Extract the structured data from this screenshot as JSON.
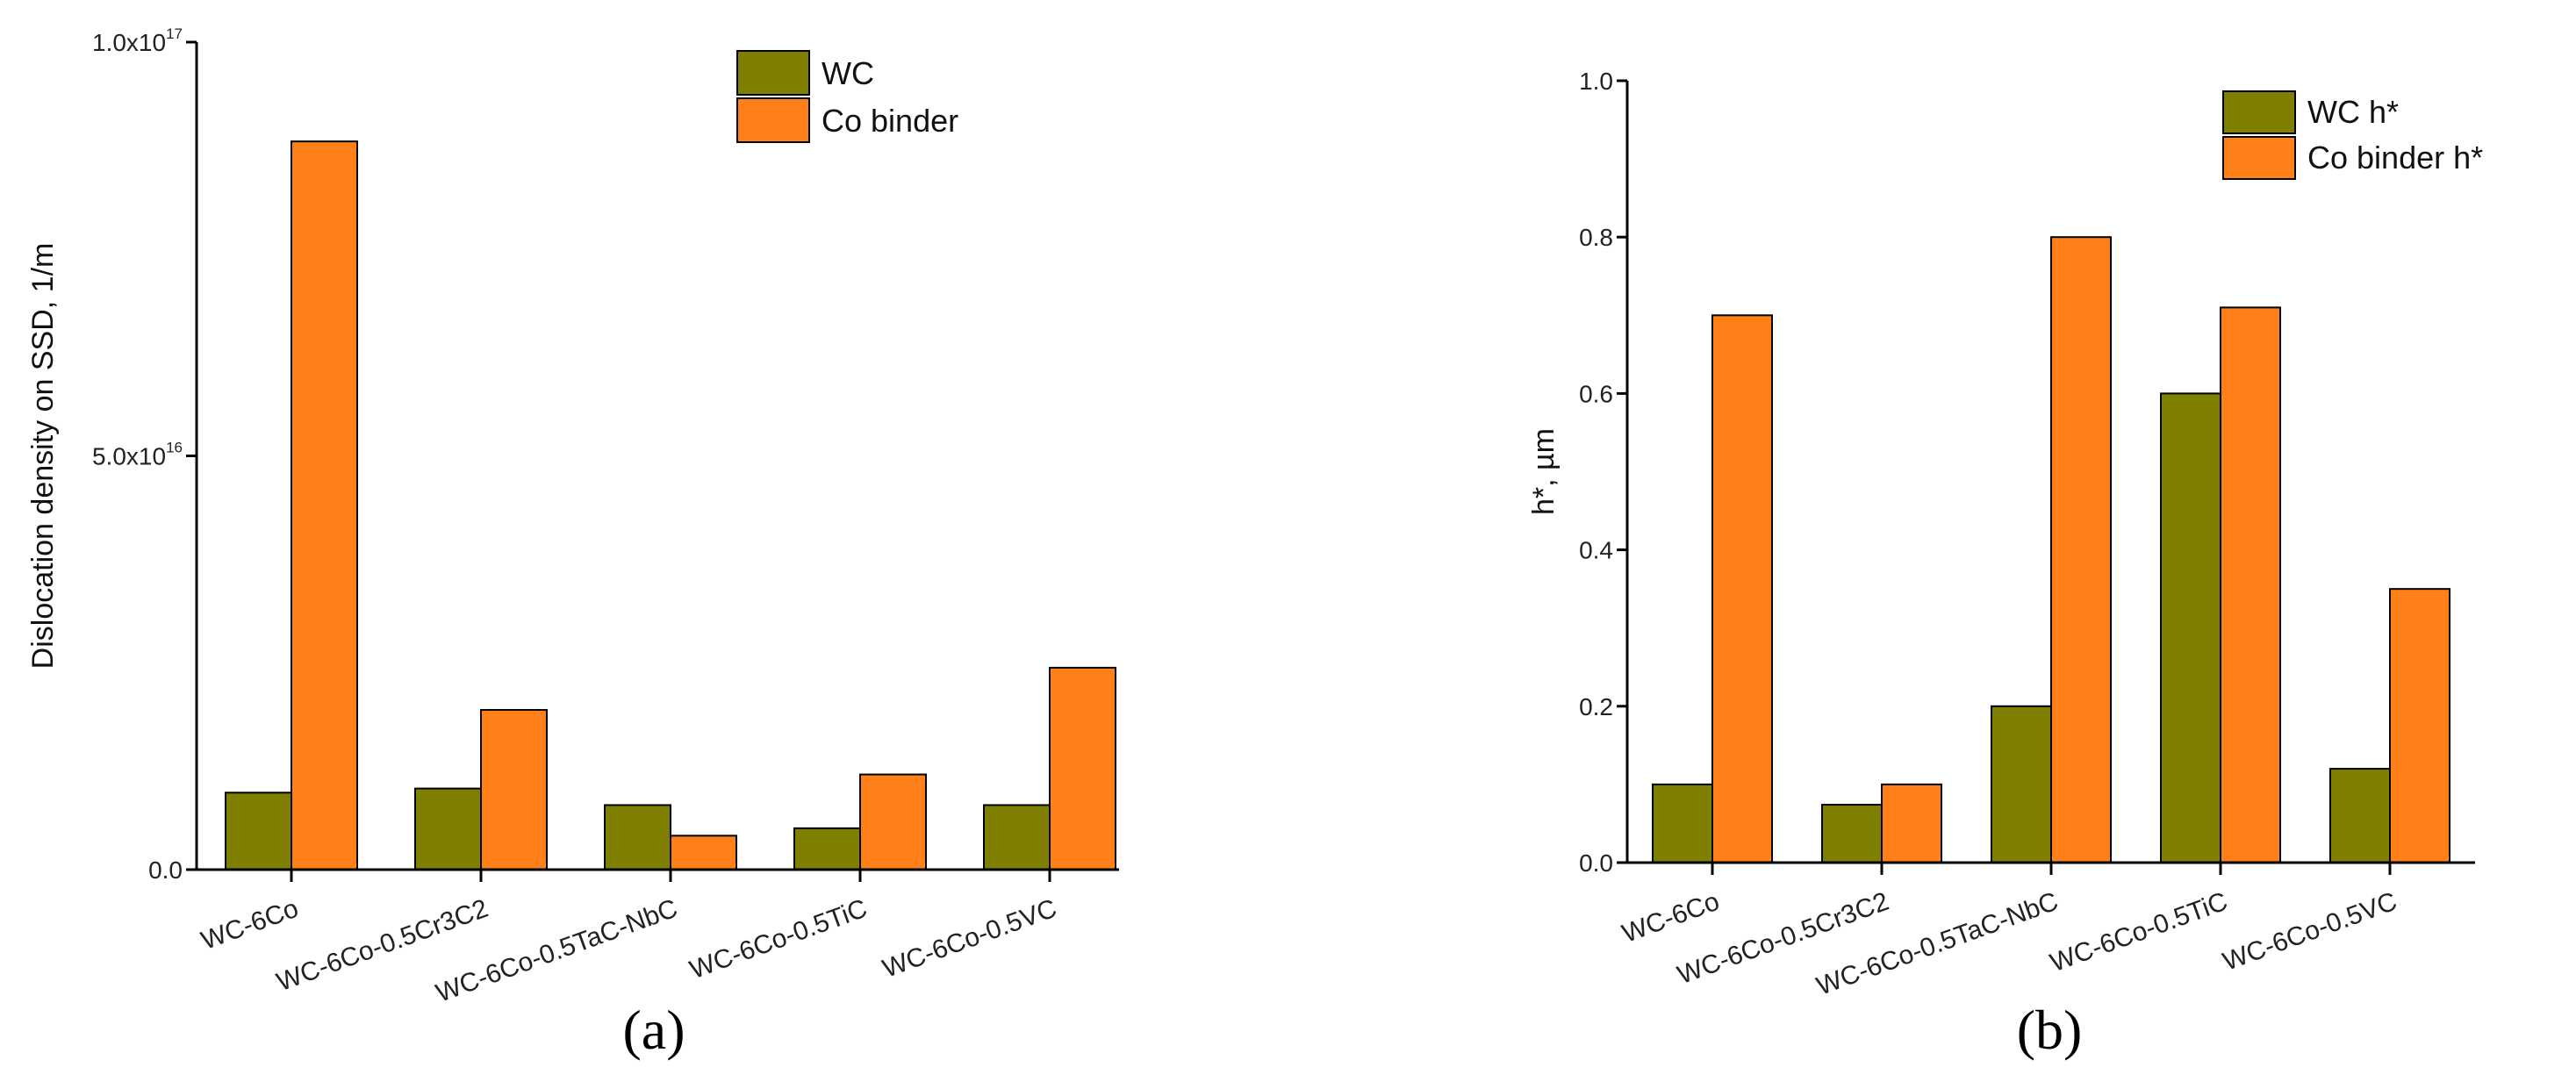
{
  "colors": {
    "wc": "#808000",
    "co": "#ff8019",
    "edge": "#000000"
  },
  "chart_data": [
    {
      "type": "bar",
      "panel_label": "(a)",
      "categories": [
        "WC-6Co",
        "WC-6Co-0.5Cr3C2",
        "WC-6Co-0.5TaC-NbC",
        "WC-6Co-0.5TiC",
        "WC-6Co-0.5VC"
      ],
      "series": [
        {
          "name": "WC",
          "values": [
            9300000000000000.0,
            9800000000000000.0,
            7800000000000000.0,
            5000000000000000.0,
            7800000000000000.0
          ]
        },
        {
          "name": "Co binder",
          "values": [
            8.8e+16,
            1.93e+16,
            4100000000000000.0,
            1.15e+16,
            2.44e+16
          ]
        }
      ],
      "ylabel": "Dislocation density on SSD, 1/m",
      "ylim": [
        0,
        1e+17
      ],
      "yticks": [
        {
          "mantissa": "0.0",
          "exp": ""
        },
        {
          "mantissa": "5.0x10",
          "exp": "16"
        },
        {
          "mantissa": "1.0x10",
          "exp": "17"
        }
      ],
      "legend": "top-right",
      "grid": false
    },
    {
      "type": "bar",
      "panel_label": "(b)",
      "categories": [
        "WC-6Co",
        "WC-6Co-0.5Cr3C2",
        "WC-6Co-0.5TaC-NbC",
        "WC-6Co-0.5TiC",
        "WC-6Co-0.5VC"
      ],
      "series": [
        {
          "name": "WC h*",
          "values": [
            0.1,
            0.074,
            0.2,
            0.6,
            0.12
          ]
        },
        {
          "name": "Co binder h*",
          "values": [
            0.7,
            0.1,
            0.8,
            0.71,
            0.35
          ]
        }
      ],
      "ylabel": "h*, µm",
      "ylim": [
        0,
        1.0
      ],
      "yticks": [
        {
          "mantissa": "0.0",
          "exp": ""
        },
        {
          "mantissa": "0.2",
          "exp": ""
        },
        {
          "mantissa": "0.4",
          "exp": ""
        },
        {
          "mantissa": "0.6",
          "exp": ""
        },
        {
          "mantissa": "0.8",
          "exp": ""
        },
        {
          "mantissa": "1.0",
          "exp": ""
        }
      ],
      "legend": "top-right",
      "grid": false
    }
  ]
}
